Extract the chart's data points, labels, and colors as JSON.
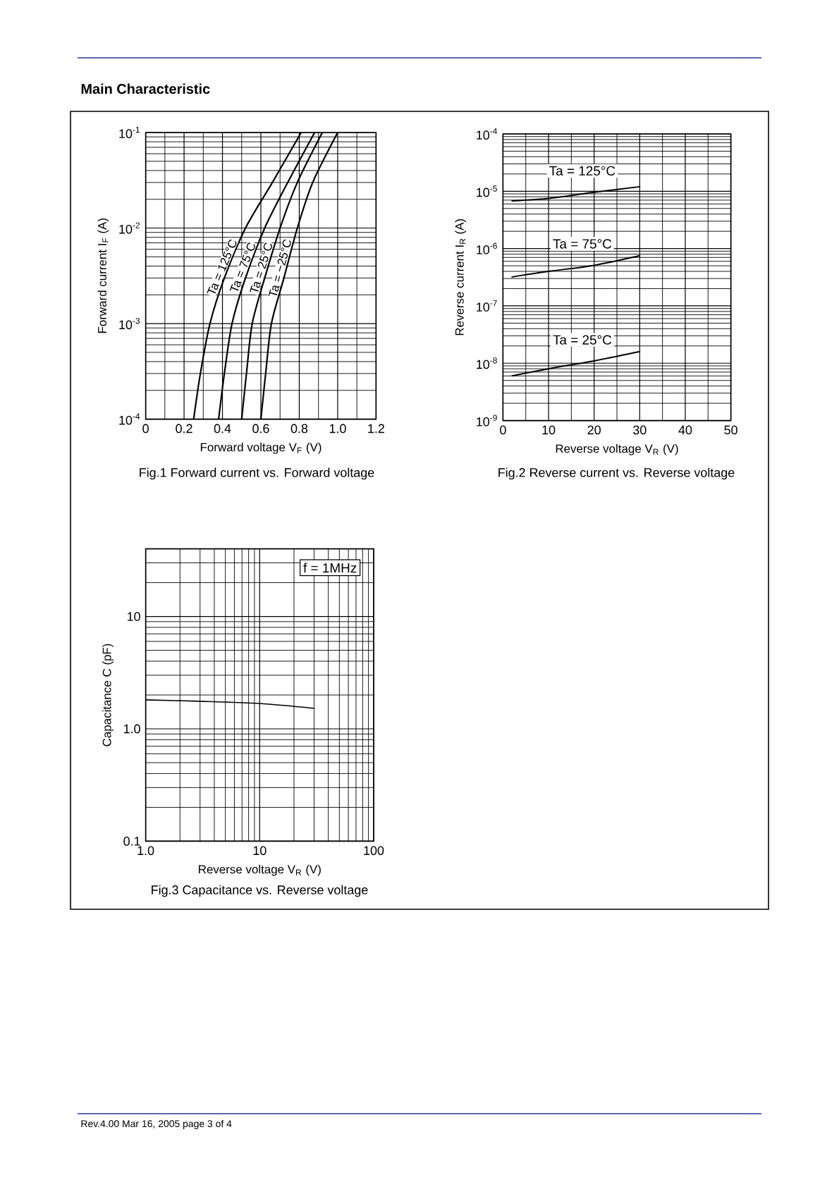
{
  "chart_data": [
    {
      "type": "line",
      "title": "Fig.1 Forward current vs. Forward voltage",
      "xlabel": "Forward voltage V$_{F}$ (V)",
      "ylabel": "Forward current I$_{F}$ (A)",
      "annotations": [
        "Main Characteristic"
      ],
      "log": "y",
      "grid": true,
      "marker": "none",
      "xlim": [
        0,
        1.2
      ],
      "ylim": [
        0.0001,
        0.1
      ],
      "xticks": [
        0,
        0.2,
        0.4,
        0.6,
        0.8,
        {
          "value": 1,
          "label": "1.0"
        },
        1.2
      ],
      "yticks": [
        {
          "value": 0.0001,
          "label": "10$^{-4}$"
        },
        {
          "value": 0.001,
          "label": "10$^{-3}$"
        },
        {
          "value": 0.01,
          "label": "10$^{-2}$"
        },
        {
          "value": 0.1,
          "label": "10$^{-1}$"
        }
      ],
      "series": [
        {
          "name": "Ta = 125°C",
          "color": "#000000",
          "x": [
            0.25,
            0.285,
            0.335,
            0.41,
            0.52,
            0.66,
            0.81
          ],
          "values": [
            0.0001,
            0.0003,
            0.001,
            0.003,
            0.01,
            0.03,
            0.1
          ]
        },
        {
          "name": "Ta = 75°C",
          "color": "#000000",
          "x": [
            0.38,
            0.41,
            0.45,
            0.52,
            0.62,
            0.74,
            0.88
          ],
          "values": [
            0.0001,
            0.0003,
            0.001,
            0.003,
            0.01,
            0.03,
            0.1
          ]
        },
        {
          "name": "Ta = 25°C",
          "color": "#000000",
          "x": [
            0.5,
            0.525,
            0.555,
            0.62,
            0.7,
            0.79,
            0.92
          ],
          "values": [
            0.0001,
            0.0003,
            0.001,
            0.003,
            0.01,
            0.03,
            0.1
          ]
        },
        {
          "name": "Ta = −25°C",
          "color": "#000000",
          "x": [
            0.6,
            0.625,
            0.655,
            0.72,
            0.79,
            0.87,
            1.0
          ],
          "values": [
            0.0001,
            0.0003,
            0.001,
            0.003,
            0.01,
            0.03,
            0.1
          ]
        }
      ]
    },
    {
      "type": "line",
      "title": "Fig.2 Reverse current vs. Reverse voltage",
      "xlabel": "Reverse voltage V$_{R}$ (V)",
      "ylabel": "Reverse current I$_{R}$ (A)",
      "log": "y",
      "grid": true,
      "marker": "none",
      "xlim": [
        0,
        50
      ],
      "ylim": [
        1e-09,
        0.0001
      ],
      "xticks": [
        0,
        10,
        20,
        30,
        40,
        50
      ],
      "yticks": [
        {
          "value": 1e-09,
          "label": "10$^{-9}$"
        },
        {
          "value": 1e-08,
          "label": "10$^{-8}$"
        },
        {
          "value": 1e-07,
          "label": "10$^{-7}$"
        },
        {
          "value": 1e-06,
          "label": "10$^{-6}$"
        },
        {
          "value": 1e-05,
          "label": "10$^{-5}$"
        },
        {
          "value": 0.0001,
          "label": "10$^{-4}$"
        }
      ],
      "series": [
        {
          "name": "Ta = 125°C",
          "color": "#000000",
          "x": [
            2,
            10,
            20,
            30
          ],
          "values": [
            6.8e-06,
            7.5e-06,
            9.6e-06,
            1.2e-05
          ]
        },
        {
          "name": "Ta = 75°C",
          "color": "#000000",
          "x": [
            2,
            10,
            20,
            30
          ],
          "values": [
            3.2e-07,
            4e-07,
            5.1e-07,
            7.5e-07
          ]
        },
        {
          "name": "Ta = 25°C",
          "color": "#000000",
          "x": [
            2,
            10,
            20,
            30
          ],
          "values": [
            6e-09,
            8e-09,
            1.1e-08,
            1.6e-08
          ]
        }
      ]
    },
    {
      "type": "line",
      "title": "Fig.3 Capacitance vs. Reverse voltage",
      "xlabel": "Reverse voltage V$_{R}$ (V)",
      "ylabel": "Capacitance C (pF)",
      "annotations": [
        "f = 1MHz",
        "Rev.4.00 Mar 16, 2005 page 3 of 4"
      ],
      "log": "xy",
      "grid": true,
      "marker": "none",
      "xlim": [
        1,
        100
      ],
      "ylim": [
        0.1,
        40
      ],
      "xticks": [
        {
          "value": 1,
          "label": "1.0"
        },
        10,
        100
      ],
      "yticks": [
        0.1,
        {
          "value": 1,
          "label": "1.0"
        },
        10
      ],
      "series": [
        {
          "color": "#000000",
          "x": [
            1,
            3,
            10,
            30
          ],
          "values": [
            1.81,
            1.76,
            1.68,
            1.52
          ]
        }
      ]
    }
  ]
}
